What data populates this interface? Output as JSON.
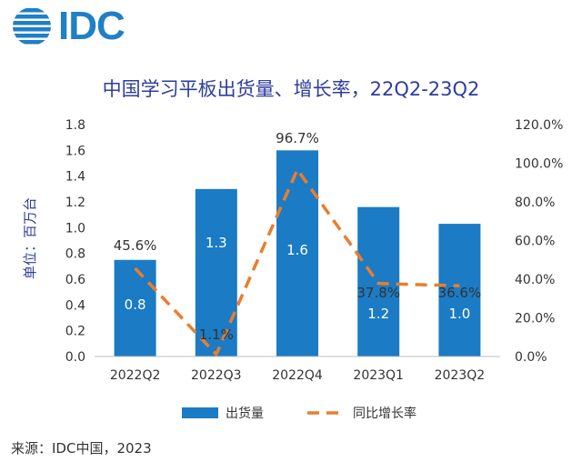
{
  "logo": {
    "text": "IDC",
    "icon": "globe-icon",
    "color": "#1f7fc7"
  },
  "title": "中国学习平板出货量、增长率，22Q2-23Q2",
  "source": "来源：IDC中国，2023",
  "chart_data": {
    "type": "bar",
    "categories": [
      "2022Q2",
      "2022Q3",
      "2022Q4",
      "2023Q1",
      "2023Q2"
    ],
    "series": [
      {
        "name": "出货量",
        "type": "bar",
        "axis": "left",
        "color": "#1b7bc4",
        "values": [
          0.75,
          1.3,
          1.6,
          1.16,
          1.03
        ],
        "labels": [
          "0.8",
          "1.3",
          "1.6",
          "1.2",
          "1.0"
        ]
      },
      {
        "name": "同比增长率",
        "type": "line",
        "axis": "right",
        "color": "#ea7d2d",
        "values": [
          45.6,
          1.1,
          96.7,
          37.8,
          36.6
        ],
        "labels": [
          "45.6%",
          "1.1%",
          "96.7%",
          "37.8%",
          "36.6%"
        ]
      }
    ],
    "ylabel": "单位：百万台",
    "ylim": [
      0,
      1.8
    ],
    "yticks": [
      "0.0",
      "0.2",
      "0.4",
      "0.6",
      "0.8",
      "1.0",
      "1.2",
      "1.4",
      "1.6",
      "1.8"
    ],
    "y2lim": [
      0,
      120
    ],
    "y2ticks": [
      "0.0%",
      "20.0%",
      "40.0%",
      "60.0%",
      "80.0%",
      "100.0%",
      "120.0%"
    ],
    "grid": false,
    "legend": "bottom"
  }
}
